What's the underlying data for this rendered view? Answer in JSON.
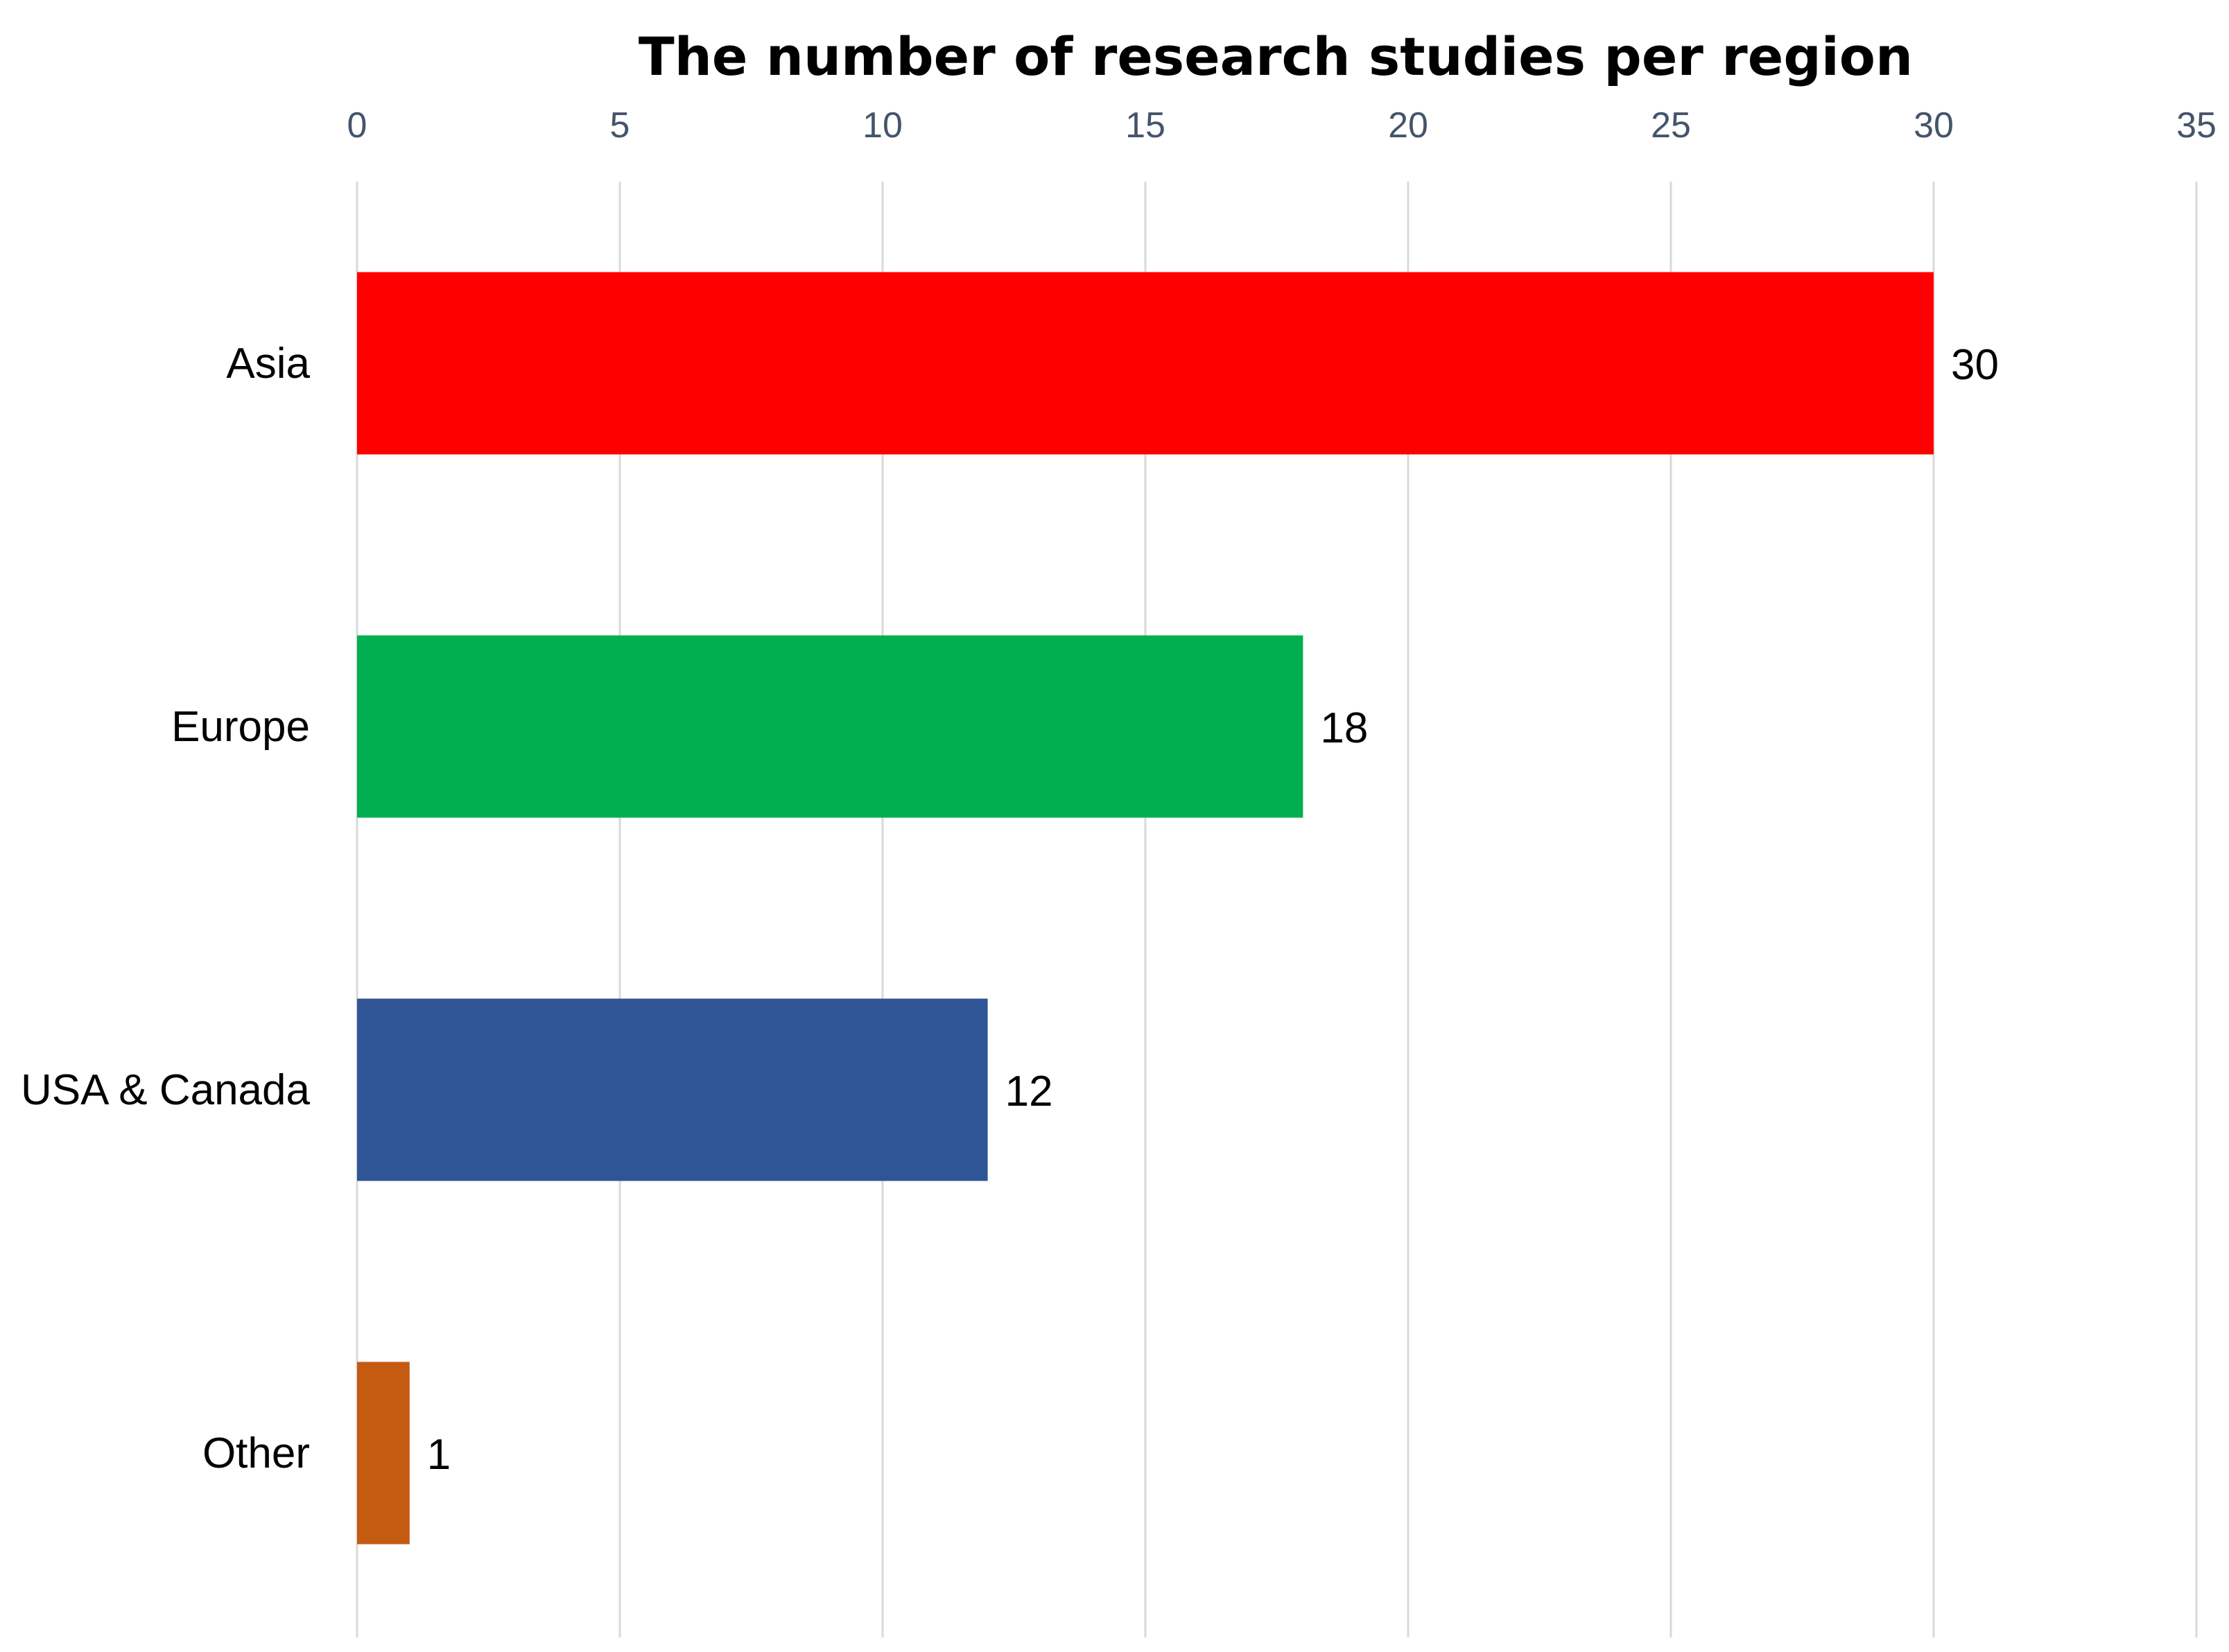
{
  "chart_data": {
    "type": "bar",
    "orientation": "horizontal",
    "title": "The number of research studies per region",
    "categories": [
      "Asia",
      "Europe",
      "USA & Canada",
      "Other"
    ],
    "values": [
      30,
      18,
      12,
      1
    ],
    "colors": [
      "#ff0000",
      "#00b050",
      "#2f5597",
      "#c55a11"
    ],
    "data_labels": [
      "30",
      "18",
      "12",
      "1"
    ],
    "x_axis": {
      "position": "top",
      "range": [
        0,
        35
      ],
      "ticks": [
        0,
        5,
        10,
        15,
        20,
        25,
        30,
        35
      ],
      "tick_labels": [
        "0",
        "5",
        "10",
        "15",
        "20",
        "25",
        "30",
        "35"
      ]
    },
    "grid": true,
    "legend": "none",
    "xlabel": "",
    "ylabel": ""
  }
}
